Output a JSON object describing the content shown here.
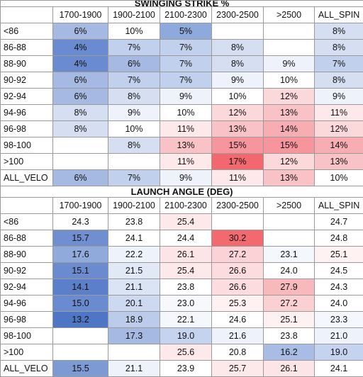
{
  "tables": [
    {
      "title": "SWINGING STRIKE %",
      "columns": [
        "1700-1900",
        "1900-2100",
        "2100-2300",
        "2300-2500",
        ">2500",
        "ALL_SPIN"
      ],
      "rows": [
        {
          "label": "<86",
          "cells": [
            "6%",
            "10%",
            "5%",
            "",
            "",
            "8%"
          ]
        },
        {
          "label": "86-88",
          "cells": [
            "4%",
            "7%",
            "7%",
            "8%",
            "",
            "8%"
          ]
        },
        {
          "label": "88-90",
          "cells": [
            "4%",
            "6%",
            "7%",
            "8%",
            "9%",
            "7%"
          ]
        },
        {
          "label": "90-92",
          "cells": [
            "6%",
            "7%",
            "7%",
            "9%",
            "10%",
            "8%"
          ]
        },
        {
          "label": "92-94",
          "cells": [
            "6%",
            "8%",
            "9%",
            "10%",
            "12%",
            "9%"
          ]
        },
        {
          "label": "94-96",
          "cells": [
            "8%",
            "9%",
            "10%",
            "12%",
            "13%",
            "11%"
          ]
        },
        {
          "label": "96-98",
          "cells": [
            "8%",
            "10%",
            "11%",
            "13%",
            "14%",
            "12%"
          ]
        },
        {
          "label": "98-100",
          "cells": [
            "",
            "8%",
            "13%",
            "15%",
            "15%",
            "14%"
          ]
        },
        {
          "label": ">100",
          "cells": [
            "",
            "",
            "11%",
            "17%",
            "12%",
            "13%"
          ]
        },
        {
          "label": "ALL_VELO",
          "cells": [
            "6%",
            "7%",
            "9%",
            "11%",
            "13%",
            "10%"
          ]
        }
      ]
    },
    {
      "title": "LAUNCH ANGLE (DEG)",
      "columns": [
        "1700-1900",
        "1900-2100",
        "2100-2300",
        "2300-2500",
        ">2500",
        "ALL_SPIN"
      ],
      "rows": [
        {
          "label": "<86",
          "cells": [
            "24.3",
            "23.8",
            "25.4",
            "",
            "",
            "24.7"
          ]
        },
        {
          "label": "86-88",
          "cells": [
            "15.7",
            "24.1",
            "24.4",
            "30.2",
            "",
            "24.8"
          ]
        },
        {
          "label": "88-90",
          "cells": [
            "17.6",
            "22.2",
            "26.1",
            "27.2",
            "23.1",
            "25.1"
          ]
        },
        {
          "label": "90-92",
          "cells": [
            "15.1",
            "21.5",
            "25.4",
            "26.6",
            "24.0",
            "24.5"
          ]
        },
        {
          "label": "92-94",
          "cells": [
            "14.1",
            "21.1",
            "23.8",
            "26.6",
            "27.9",
            "24.3"
          ]
        },
        {
          "label": "94-96",
          "cells": [
            "15.0",
            "20.1",
            "23.0",
            "25.3",
            "27.2",
            "24.0"
          ]
        },
        {
          "label": "96-98",
          "cells": [
            "13.2",
            "18.9",
            "22.1",
            "24.6",
            "25.1",
            "23.3"
          ]
        },
        {
          "label": "98-100",
          "cells": [
            "",
            "17.3",
            "19.0",
            "21.6",
            "23.8",
            "21.0"
          ]
        },
        {
          "label": ">100",
          "cells": [
            "",
            "",
            "25.6",
            "20.8",
            "16.2",
            "19.0"
          ]
        },
        {
          "label": "ALL_VELO",
          "cells": [
            "15.5",
            "21.1",
            "23.9",
            "25.7",
            "26.1",
            "24.1"
          ]
        }
      ]
    }
  ],
  "cell_colors": [
    [
      [
        "#a6b9e2",
        "#ffffff",
        "#8ea9dc",
        "",
        "",
        "#d6dff2"
      ],
      [
        "#6a8bcf",
        "#c1d0ec",
        "#c1d0ec",
        "#d6dff2",
        "",
        "#d6dff2"
      ],
      [
        "#6a8bcf",
        "#a6b9e2",
        "#c1d0ec",
        "#d6dff2",
        "#eef2fa",
        "#c1d0ec"
      ],
      [
        "#a6b9e2",
        "#c1d0ec",
        "#c1d0ec",
        "#eef2fa",
        "#ffffff",
        "#d6dff2"
      ],
      [
        "#a6b9e2",
        "#d6dff2",
        "#eef2fa",
        "#ffffff",
        "#fbd8da",
        "#eef2fa"
      ],
      [
        "#d6dff2",
        "#eef2fa",
        "#ffffff",
        "#fbd8da",
        "#f9c2c6",
        "#fde8ea"
      ],
      [
        "#d6dff2",
        "#ffffff",
        "#fde8ea",
        "#f9c2c6",
        "#f7adb2",
        "#fbd8da"
      ],
      [
        "",
        "#d6dff2",
        "#f9c2c6",
        "#f6959c",
        "#f6959c",
        "#f7adb2"
      ],
      [
        "",
        "",
        "#fde8ea",
        "#f2686e",
        "#fbd8da",
        "#f9c2c6"
      ],
      [
        "#a6b9e2",
        "#c1d0ec",
        "#eef2fa",
        "#fde8ea",
        "#f9c2c6",
        "#ffffff"
      ]
    ],
    [
      [
        "#ffffff",
        "#ffffff",
        "#fde8ea",
        "",
        "",
        "#ffffff"
      ],
      [
        "#6f8fd0",
        "#ffffff",
        "#ffffff",
        "#f26a70",
        "",
        "#ffffff"
      ],
      [
        "#90aadc",
        "#eef2fa",
        "#fde4e6",
        "#fbd3d6",
        "#f4f7fc",
        "#fef2f3"
      ],
      [
        "#6a8bcf",
        "#e2e9f6",
        "#fde8ea",
        "#fcdcdf",
        "#ffffff",
        "#ffffff"
      ],
      [
        "#5b7fc9",
        "#dbe4f4",
        "#ffffff",
        "#fcdcdf",
        "#f8b9bd",
        "#ffffff"
      ],
      [
        "#6a8bcf",
        "#cdd9f0",
        "#f6f8fc",
        "#fef1f2",
        "#fbd0d3",
        "#ffffff"
      ],
      [
        "#4f76c5",
        "#bccbea",
        "#f4f7fc",
        "#ffffff",
        "#fef1f2",
        "#f4f7fc"
      ],
      [
        "",
        "#a6b9e2",
        "#c6d3ee",
        "#eef2fa",
        "#ffffff",
        "#eef2fa"
      ],
      [
        "",
        "",
        "#fde8ea",
        "#ffffff",
        "#a9bce3",
        "#c6d3ee"
      ],
      [
        "#7e9ad5",
        "#eef2fa",
        "#ffffff",
        "#fde8ea",
        "#fde4e6",
        "#ffffff"
      ]
    ]
  ],
  "colors": {
    "border": "#9a9a9a",
    "title_bg": "#ffffff"
  }
}
